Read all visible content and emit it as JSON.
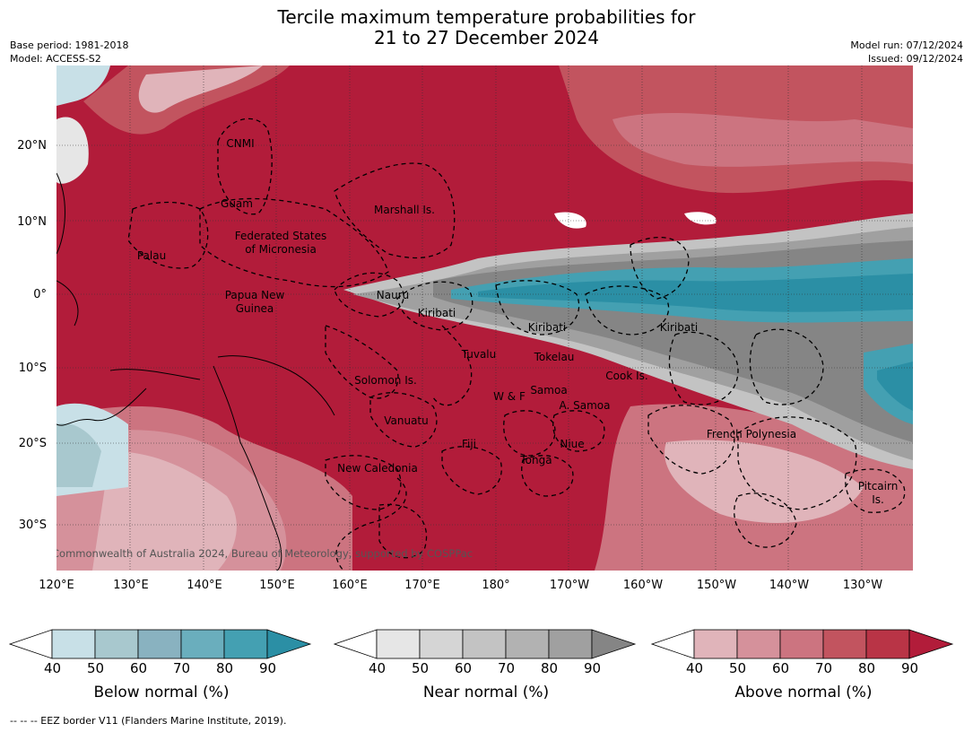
{
  "title": {
    "line1": "Tercile maximum temperature probabilities for",
    "line2": "21 to 27 December 2024"
  },
  "meta": {
    "base_period": "Base period: 1981-2018",
    "model": "Model: ACCESS-S2",
    "model_run": "Model run: 07/12/2024",
    "issued": "Issued: 09/12/2024"
  },
  "axes": {
    "lat_labels": [
      "20°N",
      "10°N",
      "0°",
      "10°S",
      "20°S",
      "30°S"
    ],
    "lon_labels": [
      "120°E",
      "130°E",
      "140°E",
      "150°E",
      "160°E",
      "170°E",
      "180°",
      "170°W",
      "160°W",
      "150°W",
      "140°W",
      "130°W"
    ]
  },
  "regions": [
    "CNMI",
    "Guam",
    "Marshall Is.",
    "Palau",
    "Federated States",
    "of Micronesia",
    "Papua New",
    "Guinea",
    "Nauru",
    "Kiribati",
    "Kiribati",
    "Kiribati",
    "Tuvalu",
    "Tokelau",
    "Cook Is.",
    "Solomon Is.",
    "W & F",
    "Samoa",
    "A. Samoa",
    "Vanuatu",
    "Fiji",
    "Niue",
    "Tonga",
    "French Polynesia",
    "New Caledonia",
    "Pitcairn",
    "Is."
  ],
  "copyright": "© Commonwealth of Australia 2024, Bureau of Meteorology, supported by COSPPac",
  "colorbars": [
    {
      "title": "Below normal (%)",
      "ticks": [
        "40",
        "50",
        "60",
        "70",
        "80",
        "90"
      ],
      "colors": [
        "#ffffff",
        "#c8e0e7",
        "#a8c8ce",
        "#89b2c0",
        "#6aaebd",
        "#44a0b2",
        "#2b8fa5"
      ]
    },
    {
      "title": "Near normal (%)",
      "ticks": [
        "40",
        "50",
        "60",
        "70",
        "80",
        "90"
      ],
      "colors": [
        "#ffffff",
        "#e6e6e6",
        "#d5d5d5",
        "#c3c3c3",
        "#b2b2b2",
        "#a0a0a0",
        "#858585"
      ]
    },
    {
      "title": "Above normal (%)",
      "ticks": [
        "40",
        "50",
        "60",
        "70",
        "80",
        "90"
      ],
      "colors": [
        "#ffffff",
        "#e0b4ba",
        "#d5919b",
        "#cc7480",
        "#c2545f",
        "#b93446",
        "#b21c3a"
      ]
    }
  ],
  "footer": "--  --  -- EEZ border V11 (Flanders Marine Institute, 2019)."
}
